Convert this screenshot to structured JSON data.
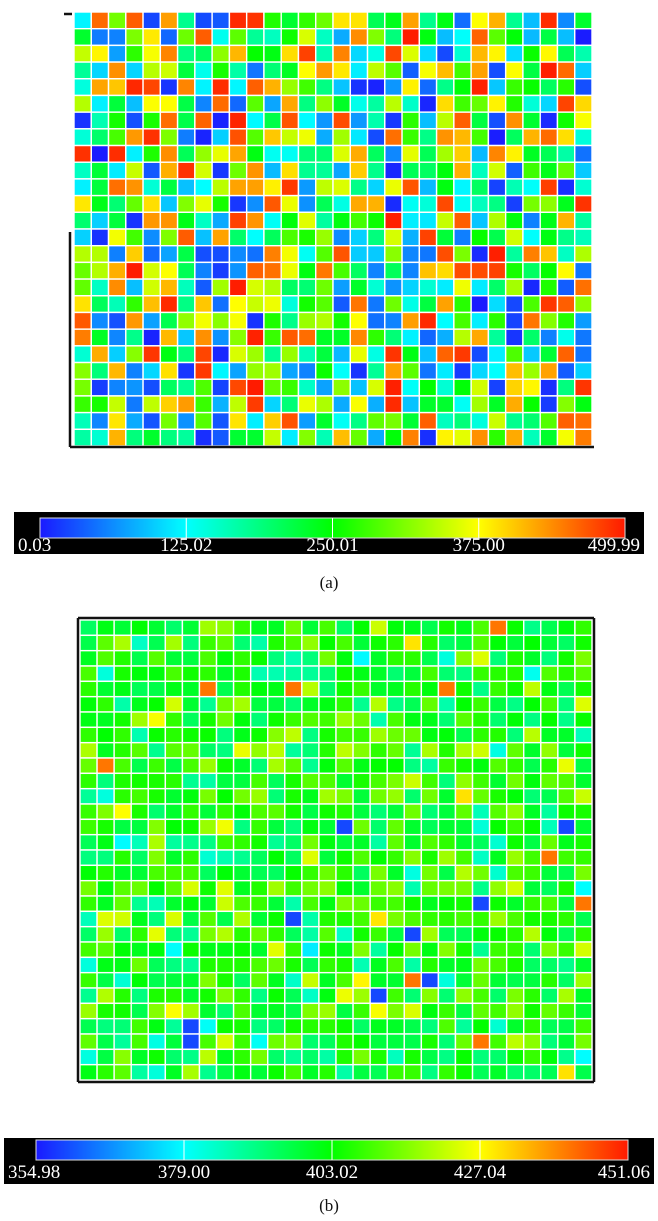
{
  "chart_data": [
    {
      "type": "heatmap",
      "panel_label": "(a)",
      "rows": 26,
      "cols": 30,
      "value_range": [
        0.03,
        499.99
      ],
      "colorbar_ticks": [
        "0.03",
        "125.02",
        "250.01",
        "375.00",
        "499.99"
      ],
      "colormap": [
        "#1a1aff",
        "#00ffff",
        "#00ff00",
        "#ffff00",
        "#ff1a00"
      ],
      "distribution": "uniform",
      "seed": 7,
      "title": "",
      "xlabel": "",
      "ylabel": ""
    },
    {
      "type": "heatmap",
      "panel_label": "(b)",
      "rows": 30,
      "cols": 30,
      "value_range": [
        354.98,
        451.06
      ],
      "colorbar_ticks": [
        "354.98",
        "379.00",
        "403.02",
        "427.04",
        "451.06"
      ],
      "colormap": [
        "#1a1aff",
        "#00ffff",
        "#00ff00",
        "#ffff00",
        "#ff1a00"
      ],
      "distribution": "concentrated",
      "seed": 19,
      "title": "",
      "xlabel": "",
      "ylabel": ""
    }
  ]
}
